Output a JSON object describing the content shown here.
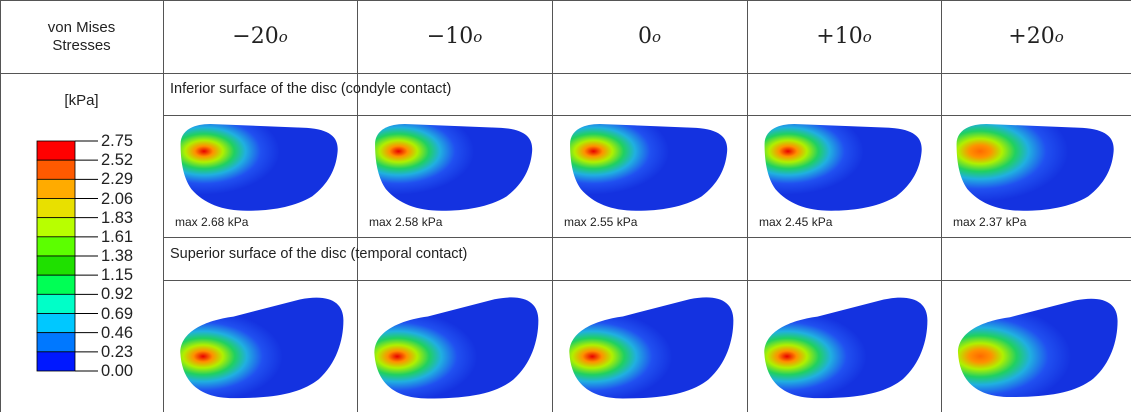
{
  "header": {
    "corner": "von Mises Stresses",
    "angles": [
      {
        "text": "−20",
        "sup": "o"
      },
      {
        "text": "−10",
        "sup": "o"
      },
      {
        "text": "0",
        "sup": "o"
      },
      {
        "text": "+10",
        "sup": "o"
      },
      {
        "text": "+20",
        "sup": "o"
      }
    ]
  },
  "legend": {
    "unit": "[kPa]",
    "levels": [
      "2.75",
      "2.52",
      "2.29",
      "2.06",
      "1.83",
      "1.61",
      "1.38",
      "1.15",
      "0.92",
      "0.69",
      "0.46",
      "0.23",
      "0.00"
    ]
  },
  "sections": [
    {
      "title": "Inferior surface of the disc (condyle contact)",
      "max_labels": [
        "max 2.68 kPa",
        "max 2.58 kPa",
        "max 2.55 kPa",
        "max 2.45 kPa",
        "max 2.37 kPa"
      ]
    },
    {
      "title": "Superior surface of the disc (temporal contact)"
    }
  ]
}
